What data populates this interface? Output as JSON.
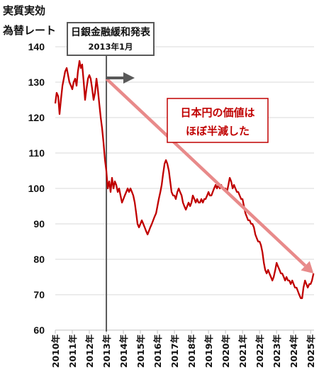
{
  "chart_data": {
    "type": "line",
    "ylabel_line1": "実質実効",
    "ylabel_line2": "為替レート",
    "ylim": [
      60,
      140
    ],
    "y_ticks": [
      "60",
      "70",
      "80",
      "90",
      "100",
      "110",
      "120",
      "130",
      "140"
    ],
    "x_ticks": [
      "2010年",
      "2011年",
      "2012年",
      "2013年",
      "2014年",
      "2015年",
      "2016年",
      "2017年",
      "2018年",
      "2019年",
      "2020年",
      "2021年",
      "2022年",
      "2023年",
      "2024年",
      "2025年"
    ],
    "x_start": 2010.0,
    "x_end": 2025.2,
    "grid": true,
    "series": [
      {
        "color": "#c00000",
        "points": [
          [
            2010.0,
            124
          ],
          [
            2010.08,
            127
          ],
          [
            2010.17,
            126
          ],
          [
            2010.25,
            121
          ],
          [
            2010.33,
            125
          ],
          [
            2010.42,
            129
          ],
          [
            2010.5,
            131
          ],
          [
            2010.58,
            133
          ],
          [
            2010.67,
            134
          ],
          [
            2010.75,
            132
          ],
          [
            2010.83,
            130
          ],
          [
            2010.92,
            129
          ],
          [
            2011.0,
            128
          ],
          [
            2011.08,
            130
          ],
          [
            2011.17,
            131
          ],
          [
            2011.25,
            129
          ],
          [
            2011.33,
            133
          ],
          [
            2011.42,
            136
          ],
          [
            2011.5,
            134
          ],
          [
            2011.58,
            135
          ],
          [
            2011.67,
            130
          ],
          [
            2011.75,
            125
          ],
          [
            2011.83,
            128
          ],
          [
            2011.92,
            131
          ],
          [
            2012.0,
            132
          ],
          [
            2012.08,
            131
          ],
          [
            2012.17,
            128
          ],
          [
            2012.25,
            125
          ],
          [
            2012.33,
            127
          ],
          [
            2012.42,
            131
          ],
          [
            2012.5,
            128
          ],
          [
            2012.58,
            124
          ],
          [
            2012.67,
            120
          ],
          [
            2012.75,
            117
          ],
          [
            2012.83,
            113
          ],
          [
            2012.92,
            108
          ],
          [
            2013.0,
            105
          ],
          [
            2013.08,
            100
          ],
          [
            2013.17,
            102
          ],
          [
            2013.25,
            99
          ],
          [
            2013.33,
            103
          ],
          [
            2013.42,
            100
          ],
          [
            2013.5,
            102
          ],
          [
            2013.58,
            101
          ],
          [
            2013.67,
            99
          ],
          [
            2013.75,
            100
          ],
          [
            2013.83,
            98
          ],
          [
            2013.92,
            96
          ],
          [
            2014.0,
            97
          ],
          [
            2014.08,
            98
          ],
          [
            2014.17,
            99
          ],
          [
            2014.25,
            100
          ],
          [
            2014.33,
            99
          ],
          [
            2014.42,
            100
          ],
          [
            2014.5,
            99
          ],
          [
            2014.58,
            98
          ],
          [
            2014.67,
            96
          ],
          [
            2014.75,
            93
          ],
          [
            2014.83,
            90
          ],
          [
            2014.92,
            89
          ],
          [
            2015.0,
            90
          ],
          [
            2015.08,
            91
          ],
          [
            2015.17,
            90
          ],
          [
            2015.25,
            89
          ],
          [
            2015.33,
            88
          ],
          [
            2015.42,
            87
          ],
          [
            2015.5,
            88
          ],
          [
            2015.58,
            89
          ],
          [
            2015.67,
            90
          ],
          [
            2015.75,
            91
          ],
          [
            2015.83,
            92
          ],
          [
            2015.92,
            93
          ],
          [
            2016.0,
            95
          ],
          [
            2016.08,
            97
          ],
          [
            2016.17,
            99
          ],
          [
            2016.25,
            101
          ],
          [
            2016.33,
            104
          ],
          [
            2016.42,
            107
          ],
          [
            2016.5,
            108
          ],
          [
            2016.58,
            107
          ],
          [
            2016.67,
            105
          ],
          [
            2016.75,
            102
          ],
          [
            2016.83,
            99
          ],
          [
            2016.92,
            98
          ],
          [
            2017.0,
            98
          ],
          [
            2017.08,
            97
          ],
          [
            2017.17,
            99
          ],
          [
            2017.25,
            100
          ],
          [
            2017.33,
            99
          ],
          [
            2017.42,
            98
          ],
          [
            2017.5,
            96
          ],
          [
            2017.58,
            95
          ],
          [
            2017.67,
            94
          ],
          [
            2017.75,
            95
          ],
          [
            2017.83,
            96
          ],
          [
            2017.92,
            95
          ],
          [
            2018.0,
            96
          ],
          [
            2018.08,
            98
          ],
          [
            2018.17,
            97
          ],
          [
            2018.25,
            96
          ],
          [
            2018.33,
            97
          ],
          [
            2018.42,
            96
          ],
          [
            2018.5,
            96
          ],
          [
            2018.58,
            97
          ],
          [
            2018.67,
            96
          ],
          [
            2018.75,
            97
          ],
          [
            2018.83,
            97
          ],
          [
            2018.92,
            98
          ],
          [
            2019.0,
            99
          ],
          [
            2019.08,
            98
          ],
          [
            2019.17,
            98
          ],
          [
            2019.25,
            99
          ],
          [
            2019.33,
            100
          ],
          [
            2019.42,
            101
          ],
          [
            2019.5,
            100
          ],
          [
            2019.58,
            101
          ],
          [
            2019.67,
            100
          ],
          [
            2019.75,
            101
          ],
          [
            2019.83,
            100
          ],
          [
            2019.92,
            100
          ],
          [
            2020.0,
            100
          ],
          [
            2020.08,
            99
          ],
          [
            2020.17,
            101
          ],
          [
            2020.25,
            103
          ],
          [
            2020.33,
            102
          ],
          [
            2020.42,
            100
          ],
          [
            2020.5,
            101
          ],
          [
            2020.58,
            100
          ],
          [
            2020.67,
            99
          ],
          [
            2020.75,
            99
          ],
          [
            2020.83,
            98
          ],
          [
            2020.92,
            97
          ],
          [
            2021.0,
            97
          ],
          [
            2021.08,
            95
          ],
          [
            2021.17,
            93
          ],
          [
            2021.25,
            92
          ],
          [
            2021.33,
            91
          ],
          [
            2021.42,
            91
          ],
          [
            2021.5,
            90
          ],
          [
            2021.58,
            90
          ],
          [
            2021.67,
            89
          ],
          [
            2021.75,
            87
          ],
          [
            2021.83,
            86
          ],
          [
            2021.92,
            85
          ],
          [
            2022.0,
            85
          ],
          [
            2022.08,
            84
          ],
          [
            2022.17,
            82
          ],
          [
            2022.25,
            79
          ],
          [
            2022.33,
            77
          ],
          [
            2022.42,
            76
          ],
          [
            2022.5,
            77
          ],
          [
            2022.58,
            76
          ],
          [
            2022.67,
            75
          ],
          [
            2022.75,
            74
          ],
          [
            2022.83,
            75
          ],
          [
            2022.92,
            77
          ],
          [
            2023.0,
            79
          ],
          [
            2023.08,
            78
          ],
          [
            2023.17,
            77
          ],
          [
            2023.25,
            76
          ],
          [
            2023.33,
            76
          ],
          [
            2023.42,
            75
          ],
          [
            2023.5,
            74
          ],
          [
            2023.58,
            75
          ],
          [
            2023.67,
            74
          ],
          [
            2023.75,
            74
          ],
          [
            2023.83,
            73
          ],
          [
            2023.92,
            74
          ],
          [
            2024.0,
            73
          ],
          [
            2024.08,
            72
          ],
          [
            2024.17,
            72
          ],
          [
            2024.25,
            71
          ],
          [
            2024.33,
            70
          ],
          [
            2024.42,
            69
          ],
          [
            2024.5,
            69
          ],
          [
            2024.58,
            72
          ],
          [
            2024.67,
            74
          ],
          [
            2024.75,
            73
          ],
          [
            2024.83,
            72
          ],
          [
            2024.92,
            73
          ],
          [
            2025.0,
            73
          ],
          [
            2025.08,
            74
          ],
          [
            2025.17,
            76
          ]
        ]
      }
    ],
    "annotations": {
      "event_title": "日銀金融緩和発表",
      "event_date": "2013年1月",
      "event_x": 2013.0,
      "callout_line1": "日本円の価値は",
      "callout_line2": "ほぼ半減した",
      "trend_arrow": {
        "from": [
          2013.0,
          131
        ],
        "to": [
          2025.17,
          76
        ],
        "color": "#e88a8a"
      },
      "right_arrow_color": "#595959",
      "accent_color": "#c00000"
    }
  }
}
